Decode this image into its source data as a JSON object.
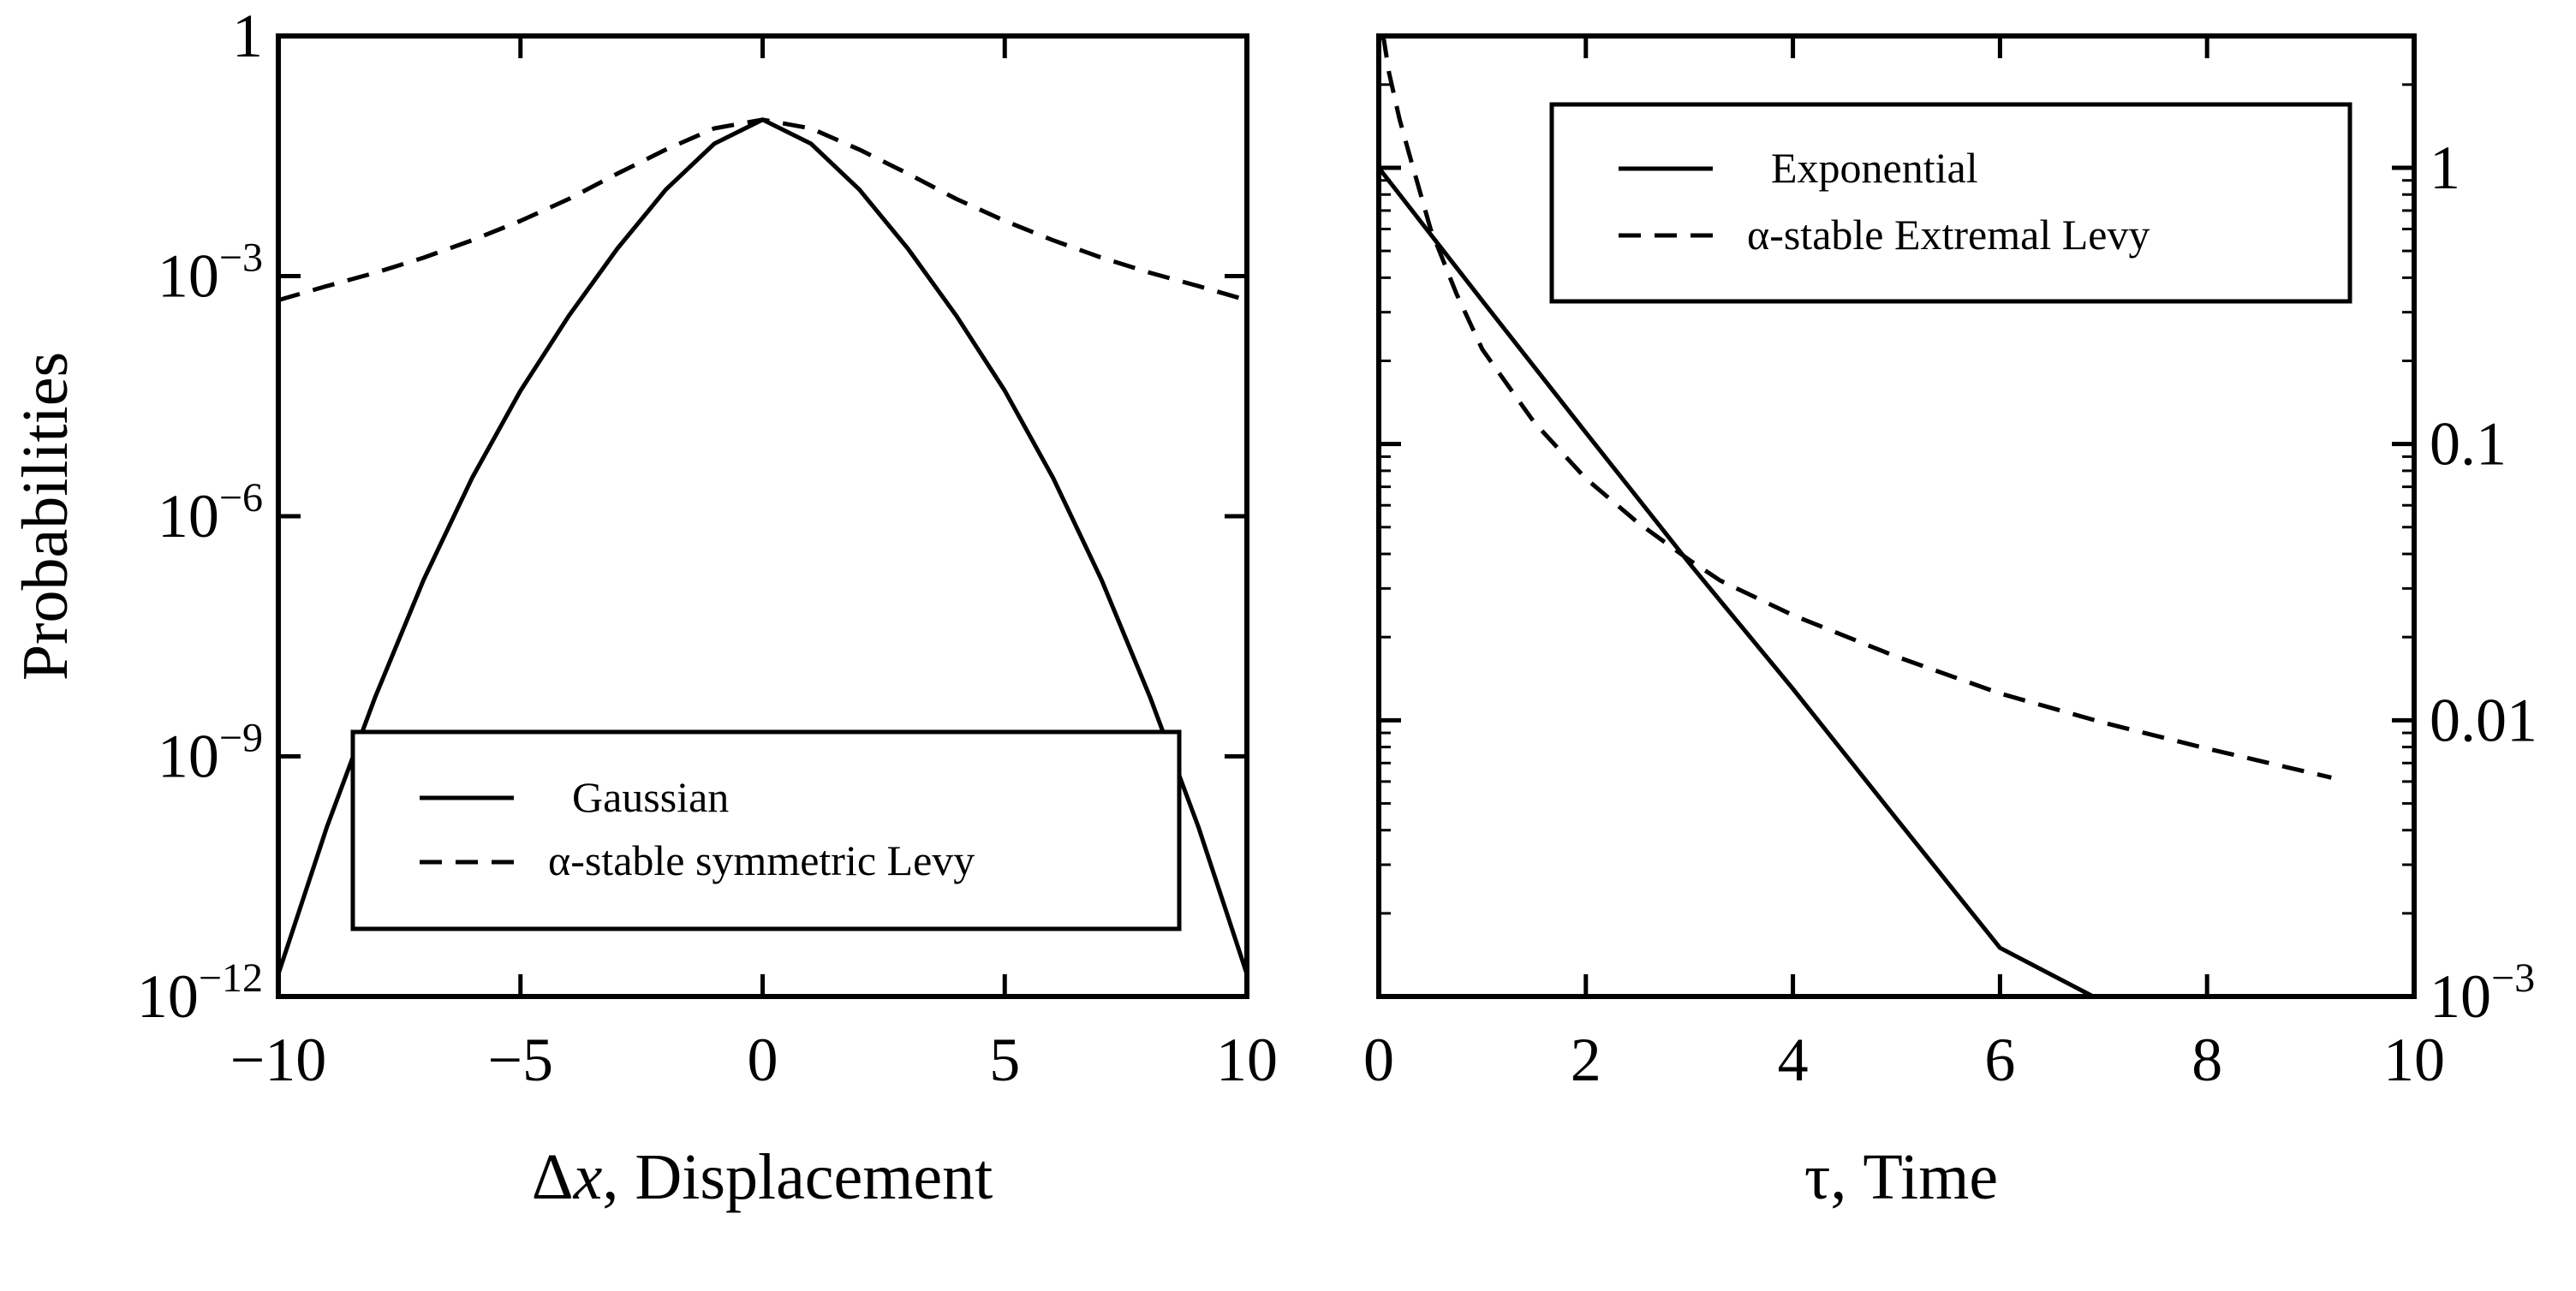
{
  "chart_data": [
    {
      "type": "line",
      "title": "",
      "xlabel": "Δx, Displacement",
      "xlabel_parts": [
        "Δ",
        "x",
        ", Displacement"
      ],
      "ylabel": "Probabilities",
      "xlim": [
        -10,
        10
      ],
      "ylim": [
        1e-12,
        1
      ],
      "yscale": "log",
      "xticks": [
        -10,
        -5,
        0,
        5,
        10
      ],
      "xtick_labels": [
        "−10",
        "−5",
        "0",
        "5",
        "10"
      ],
      "yticks": [
        1e-12,
        1e-09,
        1e-06,
        0.001,
        1
      ],
      "ytick_labels": [
        {
          "base": "10",
          "exp": "−12"
        },
        {
          "base": "10",
          "exp": "−9"
        },
        {
          "base": "10",
          "exp": "−6"
        },
        {
          "base": "10",
          "exp": "−3"
        },
        {
          "base": "1",
          "exp": ""
        }
      ],
      "grid": false,
      "legend_position": "bottom-center",
      "series": [
        {
          "name": "Gaussian",
          "dash": "solid",
          "x": [
            -10,
            -9,
            -8,
            -7,
            -6,
            -5,
            -4,
            -3,
            -2,
            -1,
            0,
            1,
            2,
            3,
            4,
            5,
            6,
            7,
            8,
            9,
            10
          ],
          "y": [
            1.9e-12,
            1.3e-10,
            5.5e-09,
            1.6e-07,
            3e-06,
            3.7e-05,
            0.00032,
            0.0022,
            0.012,
            0.045,
            0.09,
            0.045,
            0.012,
            0.0022,
            0.00032,
            3.7e-05,
            3e-06,
            1.6e-07,
            5.5e-09,
            1.3e-10,
            1.9e-12
          ]
        },
        {
          "name": "α-stable symmetric Levy",
          "dash": "dashed",
          "x": [
            -10,
            -9,
            -8,
            -7,
            -6,
            -5,
            -4,
            -3,
            -2,
            -1,
            0,
            1,
            2,
            3,
            4,
            5,
            6,
            7,
            8,
            9,
            10
          ],
          "y": [
            0.0005,
            0.00075,
            0.0011,
            0.0017,
            0.0028,
            0.0049,
            0.0092,
            0.019,
            0.038,
            0.07,
            0.09,
            0.07,
            0.038,
            0.019,
            0.0092,
            0.0049,
            0.0028,
            0.0017,
            0.0011,
            0.00075,
            0.0005
          ]
        }
      ]
    },
    {
      "type": "line",
      "title": "",
      "xlabel": "τ, Time",
      "ylabel": "",
      "xlim": [
        0,
        10
      ],
      "ylim": [
        0.001,
        3
      ],
      "yscale": "log",
      "yaxis_side": "right",
      "xticks": [
        0,
        2,
        4,
        6,
        8,
        10
      ],
      "xtick_labels": [
        "0",
        "2",
        "4",
        "6",
        "8",
        "10"
      ],
      "yticks": [
        0.001,
        0.01,
        0.1,
        1
      ],
      "ytick_labels": [
        {
          "base": "10",
          "exp": "−3"
        },
        {
          "base": "0.01",
          "exp": ""
        },
        {
          "base": "0.1",
          "exp": ""
        },
        {
          "base": "1",
          "exp": ""
        }
      ],
      "grid": false,
      "legend_position": "top-center",
      "series": [
        {
          "name": "Exponential",
          "dash": "solid",
          "x": [
            0,
            1,
            2,
            3,
            3.3,
            4,
            5,
            6,
            6.9
          ],
          "y": [
            1.0,
            0.33,
            0.11,
            0.037,
            0.027,
            0.013,
            0.0044,
            0.0015,
            0.001
          ]
        },
        {
          "name": "α-stable Extremal Levy",
          "dash": "dashed",
          "x": [
            0.03,
            0.05,
            0.1,
            0.2,
            0.3,
            0.5,
            0.75,
            1,
            1.5,
            2,
            2.5,
            3,
            3.3,
            4,
            5,
            6,
            7,
            8,
            9.2
          ],
          "y": [
            3.0,
            2.9,
            2.2,
            1.5,
            1.1,
            0.6,
            0.35,
            0.22,
            0.12,
            0.075,
            0.052,
            0.038,
            0.032,
            0.024,
            0.017,
            0.0125,
            0.0098,
            0.0079,
            0.0062
          ]
        }
      ]
    }
  ]
}
